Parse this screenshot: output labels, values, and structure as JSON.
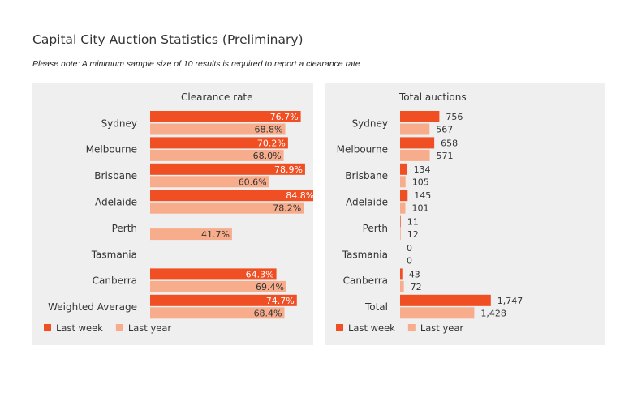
{
  "title": "Capital City Auction Statistics (Preliminary)",
  "note": "Please note: A minimum sample size of 10 results is required to report a clearance rate",
  "colors": {
    "last_week": "#f04e23",
    "last_year": "#f7ad8c",
    "panel_bg": "#efefef",
    "text": "#333333"
  },
  "chart_data": [
    {
      "type": "bar",
      "orientation": "horizontal",
      "title": "Clearance rate",
      "categories": [
        "Sydney",
        "Melbourne",
        "Brisbane",
        "Adelaide",
        "Perth",
        "Tasmania",
        "Canberra",
        "Weighted Average"
      ],
      "xlim": [
        0,
        100
      ],
      "grid": false,
      "legend": "bottom-left",
      "series": [
        {
          "name": "Last week",
          "color": "#f04e23",
          "values": [
            76.7,
            70.2,
            78.9,
            84.8,
            null,
            null,
            64.3,
            74.7
          ],
          "labels": [
            "76.7%",
            "70.2%",
            "78.9%",
            "84.8%",
            "",
            "",
            "64.3%",
            "74.7%"
          ]
        },
        {
          "name": "Last year",
          "color": "#f7ad8c",
          "values": [
            68.8,
            68.0,
            60.6,
            78.2,
            41.7,
            null,
            69.4,
            68.4
          ],
          "labels": [
            "68.8%",
            "68.0%",
            "60.6%",
            "78.2%",
            "41.7%",
            "",
            "69.4%",
            "68.4%"
          ]
        }
      ]
    },
    {
      "type": "bar",
      "orientation": "horizontal",
      "title": "Total auctions",
      "categories": [
        "Sydney",
        "Melbourne",
        "Brisbane",
        "Adelaide",
        "Perth",
        "Tasmania",
        "Canberra",
        "Total"
      ],
      "xlim": [
        0,
        2000
      ],
      "grid": false,
      "legend": "bottom-left",
      "series": [
        {
          "name": "Last week",
          "color": "#f04e23",
          "values": [
            756,
            658,
            134,
            145,
            11,
            0,
            43,
            1747
          ],
          "labels": [
            "756",
            "658",
            "134",
            "145",
            "11",
            "0",
            "43",
            "1,747"
          ]
        },
        {
          "name": "Last year",
          "color": "#f7ad8c",
          "values": [
            567,
            571,
            105,
            101,
            12,
            0,
            72,
            1428
          ],
          "labels": [
            "567",
            "571",
            "105",
            "101",
            "12",
            "0",
            "72",
            "1,428"
          ]
        }
      ]
    }
  ]
}
